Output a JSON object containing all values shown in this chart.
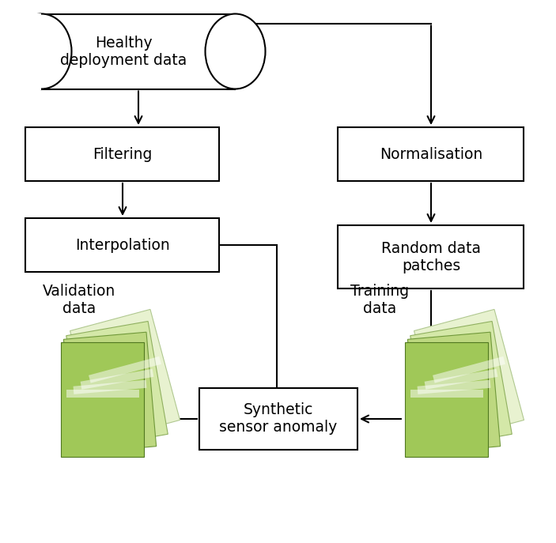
{
  "bg_color": "#ffffff",
  "cylinder_label": "Healthy\ndeployment data",
  "filter_label": "Filtering",
  "interp_label": "Interpolation",
  "norm_label": "Normalisation",
  "rdp_label": "Random data\npatches",
  "synth_label": "Synthetic\nsensor anomaly",
  "val_label": "Validation\ndata",
  "train_label": "Training\ndata",
  "page_colors": [
    "#e8f2d0",
    "#d4e8a8",
    "#bdd880",
    "#a0c858"
  ],
  "page_edge_colors": [
    "#b0c890",
    "#90b060",
    "#70983a",
    "#507820"
  ],
  "page_highlight": "#ffffff",
  "font_size": 13.5,
  "lw": 1.5
}
